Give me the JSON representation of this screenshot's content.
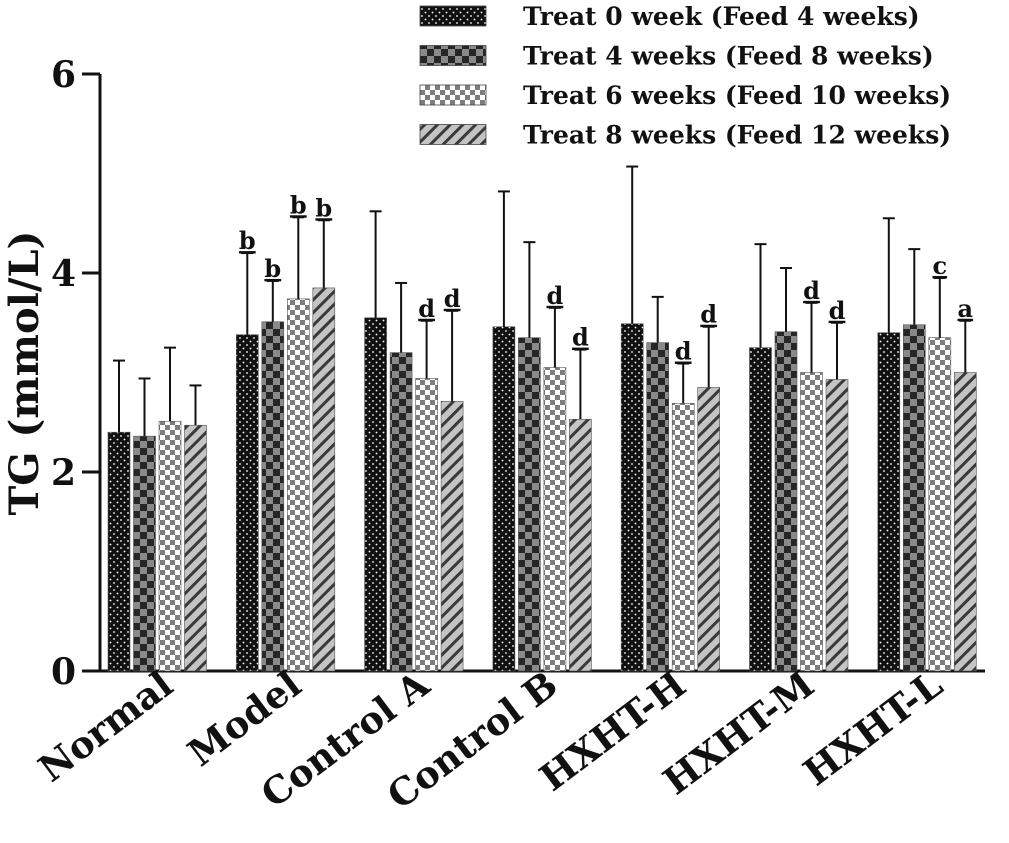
{
  "chart_data": {
    "type": "bar",
    "title": "",
    "xlabel": "",
    "ylabel": "TG (mmol/L)",
    "ylim": [
      0,
      6
    ],
    "yticks": [
      0,
      2,
      4,
      6
    ],
    "grid": false,
    "legend_position": "top-right",
    "categories": [
      "Normal",
      "Model",
      "Control A",
      "Control B",
      "HXHT-H",
      "HXHT-M",
      "HXHT-L"
    ],
    "series": [
      {
        "name": "Treat 0 week (Feed 4 weeks)",
        "pattern": "dots",
        "values": [
          2.4,
          3.38,
          3.55,
          3.46,
          3.49,
          3.25,
          3.4
        ],
        "errors": [
          0.72,
          0.82,
          1.07,
          1.36,
          1.58,
          1.04,
          1.15
        ],
        "labels": [
          "",
          "b",
          "",
          "",
          "",
          "",
          ""
        ]
      },
      {
        "name": "Treat 4 weeks (Feed 8 weeks)",
        "pattern": "big-checker",
        "values": [
          2.36,
          3.51,
          3.2,
          3.35,
          3.3,
          3.41,
          3.48
        ],
        "errors": [
          0.58,
          0.41,
          0.7,
          0.96,
          0.46,
          0.64,
          0.76
        ],
        "labels": [
          "",
          "b",
          "",
          "",
          "",
          "",
          ""
        ]
      },
      {
        "name": "Treat 6 weeks (Feed 10 weeks)",
        "pattern": "small-checker",
        "values": [
          2.51,
          3.74,
          2.94,
          3.05,
          2.69,
          3.0,
          3.35
        ],
        "errors": [
          0.74,
          0.82,
          0.58,
          0.6,
          0.4,
          0.7,
          0.6
        ],
        "labels": [
          "",
          "b",
          "d",
          "d",
          "d",
          "d",
          "c"
        ]
      },
      {
        "name": "Treat 8 weeks (Feed 12 weeks)",
        "pattern": "hatch",
        "values": [
          2.47,
          3.85,
          2.71,
          2.53,
          2.85,
          2.93,
          3.0
        ],
        "errors": [
          0.4,
          0.68,
          0.91,
          0.7,
          0.61,
          0.57,
          0.52
        ],
        "labels": [
          "",
          "b",
          "d",
          "d",
          "d",
          "d",
          "a"
        ]
      }
    ],
    "colors": {
      "dots": "#111111",
      "checker_dark": "#262626",
      "checker_light": "#8a8a8a",
      "small_checker_dark": "#7d7d7d",
      "hatch_bg": "#c4c4c4",
      "hatch_line": "#3a3a3a"
    }
  }
}
